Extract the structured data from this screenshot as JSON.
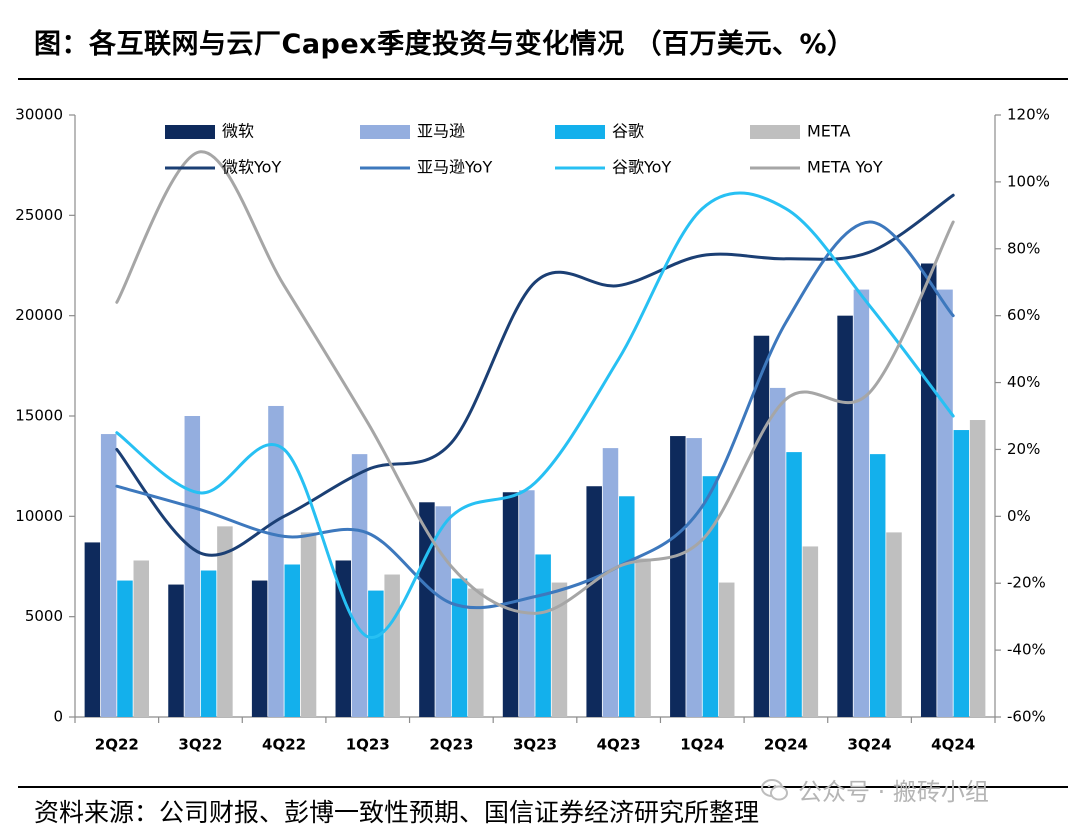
{
  "title": "图：各互联网与云厂Capex季度投资与变化情况  （百万美元、%）",
  "source": "资料来源：公司财报、彭博一致性预期、国信证券经济研究所整理",
  "watermark": "公众号 · 搬砖小组",
  "chart_data": {
    "type": "bar",
    "categories": [
      "2Q22",
      "3Q22",
      "4Q22",
      "1Q23",
      "2Q23",
      "3Q23",
      "4Q23",
      "1Q24",
      "2Q24",
      "3Q24",
      "4Q24"
    ],
    "y_left": {
      "min": 0,
      "max": 30000,
      "ticks": [
        0,
        5000,
        10000,
        15000,
        20000,
        25000,
        30000
      ],
      "tick_labels": [
        "0",
        "5000",
        "10000",
        "15000",
        "20000",
        "25000",
        "30000"
      ]
    },
    "y_right": {
      "min": -60,
      "max": 120,
      "ticks": [
        -60,
        -40,
        -20,
        0,
        20,
        40,
        60,
        80,
        100,
        120
      ],
      "tick_labels": [
        "-60%",
        "-40%",
        "-20%",
        "0%",
        "20%",
        "40%",
        "60%",
        "80%",
        "100%",
        "120%"
      ]
    },
    "series": [
      {
        "name": "微软",
        "kind": "bar",
        "axis": "left",
        "color": "#0e2a5c",
        "values": [
          8700,
          6600,
          6800,
          7800,
          10700,
          11200,
          11500,
          14000,
          19000,
          20000,
          22600
        ]
      },
      {
        "name": "亚马逊",
        "kind": "bar",
        "axis": "left",
        "color": "#94aedf",
        "values": [
          14100,
          15000,
          15500,
          13100,
          10500,
          11300,
          13400,
          13900,
          16400,
          21300,
          21300
        ]
      },
      {
        "name": "谷歌",
        "kind": "bar",
        "axis": "left",
        "color": "#13b0ec",
        "values": [
          6800,
          7300,
          7600,
          6300,
          6900,
          8100,
          11000,
          12000,
          13200,
          13100,
          14300
        ]
      },
      {
        "name": "META",
        "kind": "bar",
        "axis": "left",
        "color": "#bfbfbf",
        "values": [
          7800,
          9500,
          9200,
          7100,
          6400,
          6700,
          7900,
          6700,
          8500,
          9200,
          14800
        ]
      },
      {
        "name": "微软YoY",
        "kind": "line",
        "axis": "right",
        "color": "#1b3f74",
        "values": [
          20,
          -11,
          0,
          14,
          22,
          70,
          69,
          78,
          77,
          79,
          96
        ]
      },
      {
        "name": "亚马逊YoY",
        "kind": "line",
        "axis": "right",
        "color": "#3d78bd",
        "values": [
          9,
          2,
          -6,
          -5,
          -26,
          -24,
          -15,
          3,
          58,
          88,
          60
        ]
      },
      {
        "name": "谷歌YoY",
        "kind": "line",
        "axis": "right",
        "color": "#27c0f3",
        "values": [
          25,
          7,
          20,
          -36,
          0,
          10,
          47,
          92,
          92,
          63,
          30
        ]
      },
      {
        "name": "META YoY",
        "kind": "line",
        "axis": "right",
        "color": "#a6a6a6",
        "values": [
          64,
          109,
          69,
          28,
          -15,
          -29,
          -15,
          -7,
          35,
          37,
          88
        ]
      }
    ],
    "legend": [
      "微软",
      "亚马逊",
      "谷歌",
      "META",
      "微软YoY",
      "亚马逊YoY",
      "谷歌YoY",
      "META YoY"
    ],
    "legend_position": "top"
  }
}
